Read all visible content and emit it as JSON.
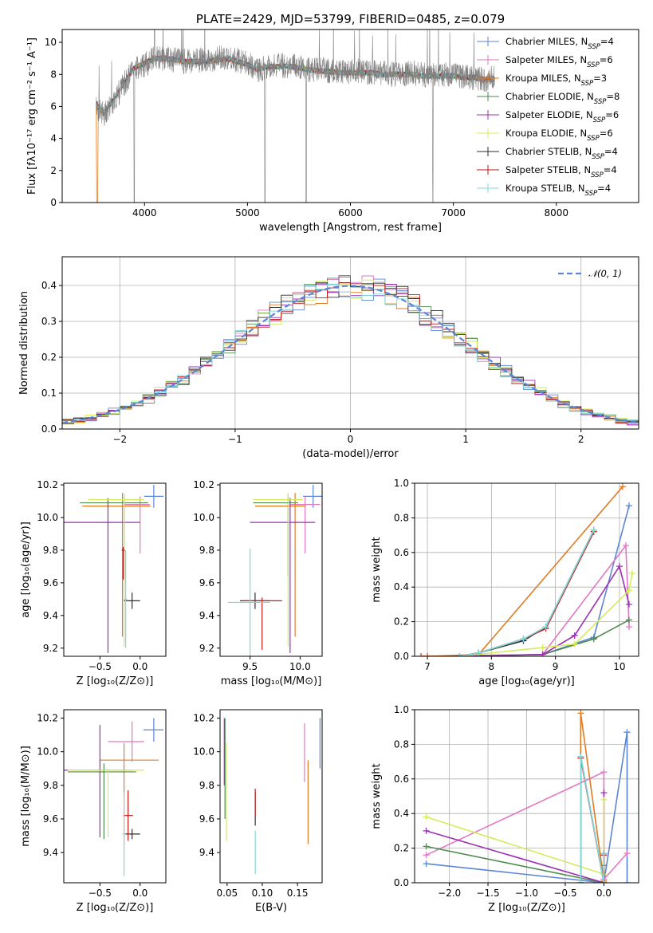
{
  "chart_data": [
    {
      "id": "spectrum",
      "type": "line",
      "title": "PLATE=2429, MJD=53799, FIBERID=0485, z=0.079",
      "xlabel": "wavelength [Angstrom, rest frame]",
      "ylabel": "Flux [fλ10⁻¹⁷ erg cm⁻² s⁻¹ A⁻¹]",
      "xlim": [
        3200,
        8800
      ],
      "ylim": [
        0,
        10.8
      ],
      "xticks": [
        4000,
        5000,
        6000,
        7000,
        8000
      ],
      "yticks": [
        0,
        2,
        4,
        6,
        8,
        10
      ],
      "grid": false,
      "legend_position": "top-right",
      "data_line": {
        "color": "#808080",
        "x": [
          3530,
          3600,
          3700,
          3800,
          3900,
          4000,
          4100,
          4200,
          4300,
          4400,
          4500,
          4600,
          4700,
          4800,
          4900,
          5000,
          5100,
          5200,
          5300,
          5400,
          5500,
          5600,
          5700,
          5800,
          5900,
          6000,
          6100,
          6200,
          6300,
          6400,
          6500,
          6600,
          6700,
          6800,
          6900,
          7000,
          7100,
          7200,
          7300,
          7400
        ],
        "y": [
          6.0,
          5.5,
          6.3,
          7.4,
          8.3,
          8.6,
          9.0,
          9.0,
          8.9,
          8.8,
          8.9,
          8.9,
          9.0,
          9.1,
          8.9,
          8.7,
          8.3,
          8.5,
          8.6,
          8.5,
          8.5,
          8.3,
          8.3,
          8.2,
          8.1,
          8.2,
          8.2,
          8.1,
          8.1,
          8.0,
          8.0,
          8.1,
          8.0,
          7.9,
          8.0,
          7.9,
          7.9,
          7.8,
          7.7,
          7.8
        ]
      },
      "models_y": [
        6.2,
        5.6,
        6.4,
        7.5,
        8.4,
        8.7,
        9.0,
        9.0,
        8.9,
        8.8,
        8.8,
        8.8,
        8.9,
        9.0,
        8.8,
        8.6,
        8.3,
        8.5,
        8.5,
        8.5,
        8.4,
        8.3,
        8.2,
        8.2,
        8.1,
        8.1,
        8.1,
        8.1,
        8.0,
        8.0,
        8.0,
        8.0,
        7.9,
        7.9,
        7.9,
        7.9,
        7.8,
        7.8,
        7.7,
        7.7
      ],
      "series": [
        {
          "name": "Chabrier MILES, N",
          "sub": "SSP",
          "val": "=4",
          "color": "#5b86d8"
        },
        {
          "name": "Salpeter MILES, N",
          "sub": "SSP",
          "val": "=6",
          "color": "#e377c2"
        },
        {
          "name": "Kroupa MILES, N",
          "sub": "SSP",
          "val": "=3",
          "color": "#e07b22"
        },
        {
          "name": "Chabrier ELODIE, N",
          "sub": "SSP",
          "val": "=8",
          "color": "#4f8a4f"
        },
        {
          "name": "Salpeter ELODIE, N",
          "sub": "SSP",
          "val": "=6",
          "color": "#9b30b0"
        },
        {
          "name": "Kroupa ELODIE, N",
          "sub": "SSP",
          "val": "=6",
          "color": "#d4ec5a"
        },
        {
          "name": "Chabrier STELIB, N",
          "sub": "SSP",
          "val": "=4",
          "color": "#2f2f2f"
        },
        {
          "name": "Salpeter STELIB, N",
          "sub": "SSP",
          "val": "=4",
          "color": "#c41a1a"
        },
        {
          "name": "Kroupa STELIB, N",
          "sub": "SSP",
          "val": "=4",
          "color": "#7fd8d8"
        }
      ]
    },
    {
      "id": "residuals",
      "type": "line",
      "xlabel": "(data-model)/error",
      "ylabel": "Normed distribution",
      "xlim": [
        -2.5,
        2.5
      ],
      "ylim": [
        0,
        0.48
      ],
      "xticks": [
        -2,
        -1,
        0,
        1,
        2
      ],
      "yticks": [
        0.0,
        0.1,
        0.2,
        0.3,
        0.4
      ],
      "grid": true,
      "legend_position": "top-right",
      "reference": {
        "name": "𝒩(0, 1)",
        "color": "#5b86d8",
        "style": "dashed"
      }
    },
    {
      "id": "age_vs_Z",
      "type": "scatter",
      "xlabel": "Z [log₁₀(Z/Z⊙)]",
      "ylabel": "age  [log₁₀(age/yr)]",
      "xlim": [
        -0.95,
        0.32
      ],
      "ylim": [
        9.15,
        10.21
      ],
      "xticks": [
        -0.5,
        0.0
      ],
      "yticks": [
        9.2,
        9.4,
        9.6,
        9.8,
        10.0,
        10.2
      ],
      "grid": false,
      "points": [
        {
          "x": 0.17,
          "y": 10.13,
          "xerr": [
            0.12,
            0.12
          ],
          "yerr": [
            0.07,
            0.07
          ],
          "color": "#5b86d8"
        },
        {
          "x": 0.0,
          "y": 10.08,
          "xerr": [
            0.2,
            0.12
          ],
          "yerr": [
            0.3,
            0.05
          ],
          "color": "#e377c2"
        },
        {
          "x": -0.22,
          "y": 10.07,
          "xerr": [
            0.5,
            0.35
          ],
          "yerr": [
            0.8,
            0.08
          ],
          "color": "#e07b22"
        },
        {
          "x": -0.2,
          "y": 10.09,
          "xerr": [
            0.55,
            0.3
          ],
          "yerr": [
            0.45,
            0.05
          ],
          "color": "#4f8a4f"
        },
        {
          "x": -0.4,
          "y": 9.97,
          "xerr": [
            0.55,
            0.4
          ],
          "yerr": [
            0.8,
            0.15
          ],
          "color": "#9b30b0"
        },
        {
          "x": -0.2,
          "y": 10.11,
          "xerr": [
            0.45,
            0.25
          ],
          "yerr": [
            0.9,
            0.04
          ],
          "color": "#d4ec5a"
        },
        {
          "x": -0.1,
          "y": 9.49,
          "xerr": [
            0.1,
            0.1
          ],
          "yerr": [
            0.05,
            0.05
          ],
          "color": "#2f2f2f"
        },
        {
          "x": -0.21,
          "y": 9.8,
          "xerr": [
            0.02,
            0.02
          ],
          "yerr": [
            0.18,
            0.02
          ],
          "color": "#c41a1a"
        },
        {
          "x": -0.18,
          "y": 9.5,
          "xerr": [
            0.02,
            0.02
          ],
          "yerr": [
            0.3,
            0.3
          ],
          "color": "#7fd8d8"
        }
      ]
    },
    {
      "id": "age_vs_mass",
      "type": "scatter",
      "xlabel": "mass [log₁₀(M/M⊙)]",
      "ylabel": "",
      "xlim": [
        9.2,
        10.22
      ],
      "ylim": [
        9.15,
        10.21
      ],
      "xticks": [
        9.5,
        10.0
      ],
      "yticks": [
        9.2,
        9.4,
        9.6,
        9.8,
        10.0,
        10.2
      ],
      "grid": false,
      "points": [
        {
          "x": 10.13,
          "y": 10.13,
          "xerr": [
            0.1,
            0.09
          ],
          "yerr": [
            0.07,
            0.07
          ],
          "color": "#5b86d8"
        },
        {
          "x": 10.05,
          "y": 10.08,
          "xerr": [
            0.15,
            0.15
          ],
          "yerr": [
            0.3,
            0.05
          ],
          "color": "#e377c2"
        },
        {
          "x": 9.95,
          "y": 10.07,
          "xerr": [
            0.4,
            0.1
          ],
          "yerr": [
            0.8,
            0.08
          ],
          "color": "#e07b22"
        },
        {
          "x": 9.88,
          "y": 10.09,
          "xerr": [
            0.35,
            0.1
          ],
          "yerr": [
            0.45,
            0.05
          ],
          "color": "#4f8a4f"
        },
        {
          "x": 9.9,
          "y": 9.97,
          "xerr": [
            0.4,
            0.25
          ],
          "yerr": [
            0.8,
            0.15
          ],
          "color": "#9b30b0"
        },
        {
          "x": 9.88,
          "y": 10.11,
          "xerr": [
            0.35,
            0.15
          ],
          "yerr": [
            0.9,
            0.04
          ],
          "color": "#d4ec5a"
        },
        {
          "x": 9.55,
          "y": 9.49,
          "xerr": [
            0.15,
            0.15
          ],
          "yerr": [
            0.05,
            0.05
          ],
          "color": "#2f2f2f"
        },
        {
          "x": 9.62,
          "y": 9.49,
          "xerr": [
            0.2,
            0.2
          ],
          "yerr": [
            0.3,
            0.02
          ],
          "color": "#c41a1a"
        },
        {
          "x": 9.5,
          "y": 9.48,
          "xerr": [
            0.22,
            0.2
          ],
          "yerr": [
            0.33,
            0.33
          ],
          "color": "#7fd8d8"
        }
      ]
    },
    {
      "id": "massweight_vs_age",
      "type": "line",
      "xlabel": "age  [log₁₀(age/yr)]",
      "ylabel": "mass weight",
      "xlim": [
        6.8,
        10.3
      ],
      "ylim": [
        0.0,
        1.0
      ],
      "xticks": [
        7,
        8,
        9,
        10
      ],
      "yticks": [
        0.0,
        0.2,
        0.4,
        0.6,
        0.8,
        1.0
      ],
      "grid": true,
      "series": [
        {
          "color": "#5b86d8",
          "x": [
            6.9,
            7.0,
            8.8,
            9.6,
            10.15
          ],
          "y": [
            0.0,
            0.0,
            0.01,
            0.11,
            0.87
          ]
        },
        {
          "color": "#e377c2",
          "x": [
            6.9,
            7.0,
            8.8,
            10.1,
            10.15
          ],
          "y": [
            0.0,
            0.0,
            0.01,
            0.64,
            0.17
          ]
        },
        {
          "color": "#e07b22",
          "x": [
            6.9,
            7.0,
            7.8,
            10.05
          ],
          "y": [
            0.0,
            0.0,
            0.01,
            0.98
          ]
        },
        {
          "color": "#4f8a4f",
          "x": [
            7.5,
            8.8,
            9.6,
            10.15
          ],
          "y": [
            0.0,
            0.01,
            0.1,
            0.21
          ]
        },
        {
          "color": "#9b30b0",
          "x": [
            7.5,
            8.8,
            9.3,
            10.0,
            10.15
          ],
          "y": [
            0.0,
            0.01,
            0.12,
            0.52,
            0.3
          ]
        },
        {
          "color": "#d4ec5a",
          "x": [
            7.5,
            8.8,
            9.3,
            10.15,
            10.2
          ],
          "y": [
            0.0,
            0.05,
            0.07,
            0.38,
            0.48
          ]
        },
        {
          "color": "#2f2f2f",
          "x": [
            7.5,
            7.8,
            8.5,
            8.85,
            9.6
          ],
          "y": [
            0.0,
            0.02,
            0.09,
            0.17,
            0.73
          ]
        },
        {
          "color": "#c41a1a",
          "x": [
            7.5,
            7.8,
            8.5,
            8.85,
            9.6
          ],
          "y": [
            0.0,
            0.02,
            0.1,
            0.16,
            0.72
          ]
        },
        {
          "color": "#7fd8d8",
          "x": [
            7.5,
            7.8,
            8.5,
            8.85,
            9.6
          ],
          "y": [
            0.0,
            0.02,
            0.1,
            0.17,
            0.73
          ]
        }
      ]
    },
    {
      "id": "mass_vs_Z",
      "type": "scatter",
      "xlabel": "Z [log₁₀(Z/Z⊙)]",
      "ylabel": "mass [log₁₀(M/M⊙)]",
      "xlim": [
        -0.95,
        0.32
      ],
      "ylim": [
        9.22,
        10.25
      ],
      "xticks": [
        -0.5,
        0.0
      ],
      "yticks": [
        9.4,
        9.6,
        9.8,
        10.0,
        10.2
      ],
      "grid": false,
      "points": [
        {
          "x": 0.17,
          "y": 10.13,
          "xerr": [
            0.13,
            0.12
          ],
          "yerr": [
            0.07,
            0.07
          ],
          "color": "#5b86d8"
        },
        {
          "x": -0.1,
          "y": 10.06,
          "xerr": [
            0.3,
            0.15
          ],
          "yerr": [
            0.12,
            0.12
          ],
          "color": "#e377c2"
        },
        {
          "x": -0.2,
          "y": 9.95,
          "xerr": [
            0.3,
            0.43
          ],
          "yerr": [
            0.5,
            0.1
          ],
          "color": "#e07b22"
        },
        {
          "x": -0.45,
          "y": 9.88,
          "xerr": [
            0.45,
            0.4
          ],
          "yerr": [
            0.4,
            0.05
          ],
          "color": "#4f8a4f"
        },
        {
          "x": -0.5,
          "y": 9.89,
          "xerr": [
            0.45,
            0.4
          ],
          "yerr": [
            0.4,
            0.27
          ],
          "color": "#9b30b0"
        },
        {
          "x": -0.4,
          "y": 9.89,
          "xerr": [
            0.5,
            0.45
          ],
          "yerr": [
            0.4,
            0.01
          ],
          "color": "#d4ec5a"
        },
        {
          "x": -0.1,
          "y": 9.51,
          "xerr": [
            0.1,
            0.1
          ],
          "yerr": [
            0.03,
            0.03
          ],
          "color": "#2f2f2f"
        },
        {
          "x": -0.15,
          "y": 9.62,
          "xerr": [
            0.06,
            0.06
          ],
          "yerr": [
            0.15,
            0.15
          ],
          "color": "#c41a1a"
        },
        {
          "x": -0.2,
          "y": 9.51,
          "xerr": [
            0.02,
            0.02
          ],
          "yerr": [
            0.25,
            0.25
          ],
          "color": "#7fd8d8"
        }
      ]
    },
    {
      "id": "mass_vs_EBV",
      "type": "scatter",
      "xlabel": "E(B-V)",
      "ylabel": "",
      "xlim": [
        0.04,
        0.185
      ],
      "ylim": [
        9.22,
        10.25
      ],
      "xticks": [
        0.05,
        0.1,
        0.15
      ],
      "yticks": [
        9.4,
        9.6,
        9.8,
        10.0,
        10.2
      ],
      "grid": false,
      "points": [
        {
          "x": 0.182,
          "y": 10.05,
          "xerr": [
            0.0,
            0.0
          ],
          "yerr": [
            0.15,
            0.15
          ],
          "color": "#5b86d8"
        },
        {
          "x": 0.16,
          "y": 9.99,
          "xerr": [
            0.0,
            0.0
          ],
          "yerr": [
            0.17,
            0.18
          ],
          "color": "#e377c2"
        },
        {
          "x": 0.165,
          "y": 9.7,
          "xerr": [
            0.0,
            0.0
          ],
          "yerr": [
            0.25,
            0.25
          ],
          "color": "#e07b22"
        },
        {
          "x": 0.047,
          "y": 9.9,
          "xerr": [
            0.0,
            0.0
          ],
          "yerr": [
            0.3,
            0.3
          ],
          "color": "#4f8a4f"
        },
        {
          "x": 0.046,
          "y": 10.0,
          "xerr": [
            0.0,
            0.0
          ],
          "yerr": [
            0.2,
            0.2
          ],
          "color": "#9b30b0"
        },
        {
          "x": 0.049,
          "y": 9.72,
          "xerr": [
            0.0,
            0.0
          ],
          "yerr": [
            0.25,
            0.33
          ],
          "color": "#d4ec5a"
        },
        {
          "x": 0.09,
          "y": 9.66,
          "xerr": [
            0.0,
            0.0
          ],
          "yerr": [
            0.1,
            0.1
          ],
          "color": "#2f2f2f"
        },
        {
          "x": 0.09,
          "y": 9.7,
          "xerr": [
            0.0,
            0.0
          ],
          "yerr": [
            0.08,
            0.08
          ],
          "color": "#c41a1a"
        },
        {
          "x": 0.09,
          "y": 9.4,
          "xerr": [
            0.0,
            0.0
          ],
          "yerr": [
            0.13,
            0.13
          ],
          "color": "#7fd8d8"
        }
      ]
    },
    {
      "id": "massweight_vs_Z",
      "type": "line",
      "xlabel": "Z [log₁₀(Z/Z⊙)]",
      "ylabel": "mass weight",
      "xlim": [
        -2.45,
        0.45
      ],
      "ylim": [
        0.0,
        1.0
      ],
      "xticks": [
        -2.0,
        -1.5,
        -1.0,
        -0.5,
        0.0
      ],
      "yticks": [
        0.0,
        0.2,
        0.4,
        0.6,
        0.8,
        1.0
      ],
      "grid": true,
      "series": [
        {
          "color": "#5b86d8",
          "x": [
            -2.3,
            0.0,
            0.0,
            0.3,
            0.3
          ],
          "y": [
            0.11,
            0.0,
            0.0,
            0.87,
            0.0
          ]
        },
        {
          "color": "#e377c2",
          "x": [
            -2.3,
            0.0,
            0.0,
            0.3
          ],
          "y": [
            0.16,
            0.64,
            0.02,
            0.17
          ]
        },
        {
          "color": "#e07b22",
          "x": [
            -0.3,
            -0.3,
            0.0
          ],
          "y": [
            0.0,
            0.98,
            0.01
          ]
        },
        {
          "color": "#4f8a4f",
          "x": [
            -2.3,
            0.0,
            0.0
          ],
          "y": [
            0.21,
            0.0,
            0.1
          ]
        },
        {
          "color": "#9b30b0",
          "x": [
            -2.3,
            0.0,
            0.0
          ],
          "y": [
            0.3,
            0.0,
            0.52
          ]
        },
        {
          "color": "#d4ec5a",
          "x": [
            -2.3,
            0.0,
            0.0
          ],
          "y": [
            0.38,
            0.05,
            0.48
          ]
        },
        {
          "color": "#2f2f2f",
          "x": [
            -0.3,
            -0.3,
            0.0,
            0.0
          ],
          "y": [
            0.0,
            0.73,
            0.0,
            0.17
          ]
        },
        {
          "color": "#c41a1a",
          "x": [
            -0.3,
            -0.3,
            0.0,
            0.0
          ],
          "y": [
            0.0,
            0.72,
            0.0,
            0.16
          ]
        },
        {
          "color": "#7fd8d8",
          "x": [
            -0.3,
            -0.3,
            0.0,
            0.0
          ],
          "y": [
            0.0,
            0.73,
            0.0,
            0.17
          ]
        }
      ]
    }
  ]
}
